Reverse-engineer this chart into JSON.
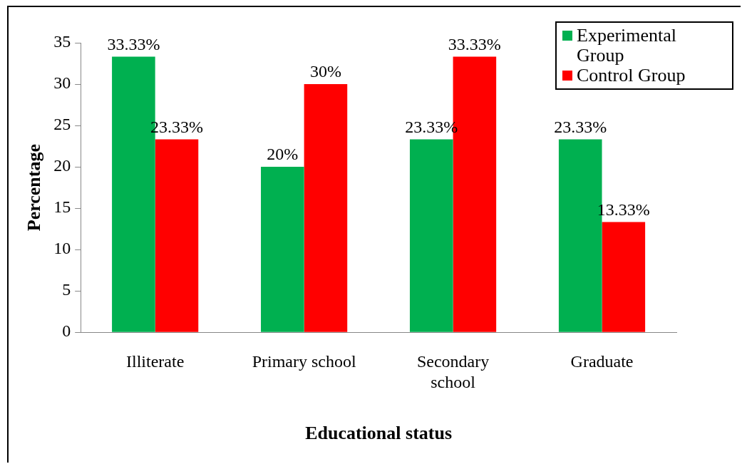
{
  "chart_data": {
    "type": "bar",
    "xlabel": "Educational status",
    "ylabel": "Percentage",
    "categories": [
      "Illiterate",
      "Primary school",
      "Secondary school",
      "Graduate"
    ],
    "series": [
      {
        "name": "Experimental Group",
        "color": "#00b050",
        "values": [
          33.33,
          20,
          23.33,
          23.33
        ],
        "value_labels": [
          "33.33%",
          "20%",
          "23.33%",
          "23.33%"
        ]
      },
      {
        "name": "Control Group",
        "color": "#ff0000",
        "values": [
          23.33,
          30,
          33.33,
          13.33
        ],
        "value_labels": [
          "23.33%",
          "30%",
          "33.33%",
          "13.33%"
        ]
      }
    ],
    "ylim": [
      0,
      35
    ],
    "yticks": [
      0,
      5,
      10,
      15,
      20,
      25,
      30,
      35
    ],
    "grid": false,
    "legend": "top right"
  }
}
